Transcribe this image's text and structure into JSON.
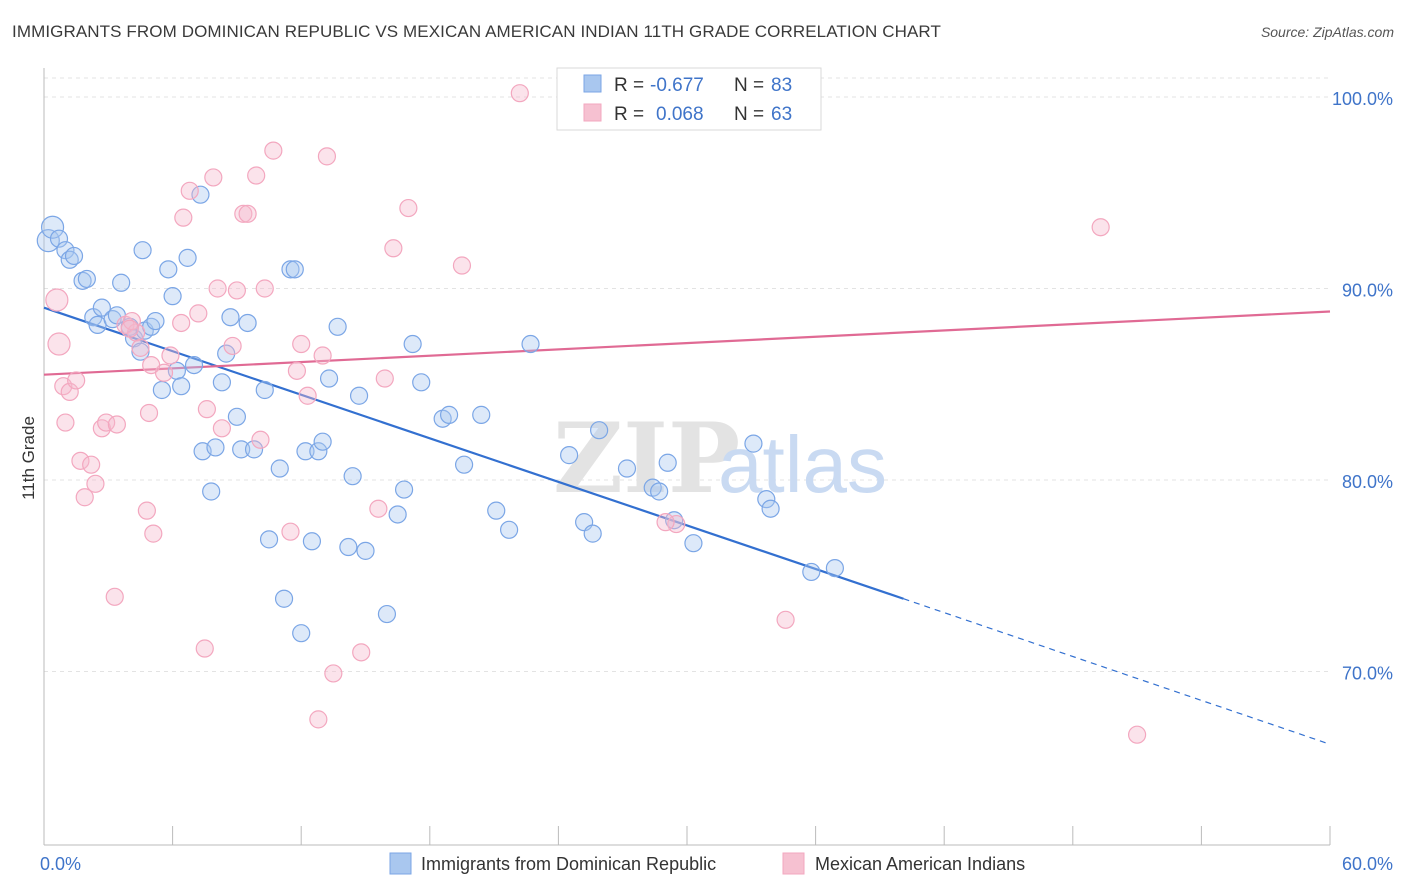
{
  "header": {
    "title": "IMMIGRANTS FROM DOMINICAN REPUBLIC VS MEXICAN AMERICAN INDIAN 11TH GRADE CORRELATION CHART",
    "source": "Source: ZipAtlas.com"
  },
  "watermark": {
    "zip": "ZIP",
    "atlas": "atlas"
  },
  "legend": {
    "rows": [
      {
        "r_label": "R =",
        "r_value": "-0.677",
        "n_label": "N =",
        "n_value": "83",
        "color": "#a9c7ef"
      },
      {
        "r_label": "R =",
        "r_value": "0.068",
        "n_label": "N =",
        "n_value": "63",
        "color": "#f6b9cc"
      }
    ]
  },
  "chart_data": {
    "type": "scatter",
    "title": "IMMIGRANTS FROM DOMINICAN REPUBLIC VS MEXICAN AMERICAN INDIAN 11TH GRADE CORRELATION CHART",
    "xlabel": "",
    "ylabel": "11th Grade",
    "xlim": [
      0,
      60
    ],
    "ylim": [
      60.5,
      103
    ],
    "x_tick_labels": [
      "0.0%",
      "60.0%"
    ],
    "y_ticks": [
      70,
      80,
      90,
      100
    ],
    "y_tick_labels": [
      "70.0%",
      "80.0%",
      "90.0%",
      "100.0%"
    ],
    "grid": true,
    "legend_position": "top-center",
    "series": [
      {
        "name": "Immigrants from Dominican Republic",
        "color": "#7ba6e6",
        "line_color": "#3370d0",
        "trend": {
          "x0": 0,
          "y0": 89.0,
          "x1": 40.1,
          "y1": 73.8,
          "x_ext": 60,
          "y_ext": 66.2
        },
        "points": [
          [
            0.2,
            92.5
          ],
          [
            0.4,
            93.2
          ],
          [
            0.7,
            92.6
          ],
          [
            1.0,
            92.0
          ],
          [
            1.2,
            91.5
          ],
          [
            1.4,
            91.7
          ],
          [
            1.8,
            90.4
          ],
          [
            2.0,
            90.5
          ],
          [
            2.3,
            88.5
          ],
          [
            2.5,
            88.1
          ],
          [
            2.7,
            89.0
          ],
          [
            3.2,
            88.4
          ],
          [
            3.4,
            88.6
          ],
          [
            3.6,
            90.3
          ],
          [
            4.0,
            88.0
          ],
          [
            4.2,
            87.4
          ],
          [
            4.5,
            86.7
          ],
          [
            4.7,
            87.8
          ],
          [
            4.6,
            92.0
          ],
          [
            5.0,
            88.0
          ],
          [
            5.2,
            88.3
          ],
          [
            5.5,
            84.7
          ],
          [
            5.8,
            91.0
          ],
          [
            6.0,
            89.6
          ],
          [
            6.2,
            85.7
          ],
          [
            6.4,
            84.9
          ],
          [
            6.7,
            91.6
          ],
          [
            7.0,
            86.0
          ],
          [
            7.3,
            94.9
          ],
          [
            7.4,
            81.5
          ],
          [
            7.8,
            79.4
          ],
          [
            8.0,
            81.7
          ],
          [
            8.3,
            85.1
          ],
          [
            8.5,
            86.6
          ],
          [
            8.7,
            88.5
          ],
          [
            9.0,
            83.3
          ],
          [
            9.2,
            81.6
          ],
          [
            9.5,
            88.2
          ],
          [
            9.8,
            81.6
          ],
          [
            10.3,
            84.7
          ],
          [
            10.5,
            76.9
          ],
          [
            11.0,
            80.6
          ],
          [
            11.2,
            73.8
          ],
          [
            11.5,
            91.0
          ],
          [
            11.7,
            91.0
          ],
          [
            12.0,
            72.0
          ],
          [
            12.2,
            81.5
          ],
          [
            12.5,
            76.8
          ],
          [
            12.8,
            81.5
          ],
          [
            13.0,
            82.0
          ],
          [
            13.3,
            85.3
          ],
          [
            13.7,
            88.0
          ],
          [
            14.2,
            76.5
          ],
          [
            14.4,
            80.2
          ],
          [
            14.7,
            84.4
          ],
          [
            15.0,
            76.3
          ],
          [
            16.0,
            73.0
          ],
          [
            16.5,
            78.2
          ],
          [
            16.8,
            79.5
          ],
          [
            17.2,
            87.1
          ],
          [
            17.6,
            85.1
          ],
          [
            18.6,
            83.2
          ],
          [
            18.9,
            83.4
          ],
          [
            19.6,
            80.8
          ],
          [
            20.4,
            83.4
          ],
          [
            21.1,
            78.4
          ],
          [
            21.7,
            77.4
          ],
          [
            22.7,
            87.1
          ],
          [
            24.5,
            81.3
          ],
          [
            25.2,
            77.8
          ],
          [
            25.6,
            77.2
          ],
          [
            25.9,
            82.6
          ],
          [
            27.2,
            80.6
          ],
          [
            28.4,
            79.6
          ],
          [
            28.7,
            79.4
          ],
          [
            29.1,
            80.9
          ],
          [
            29.4,
            77.9
          ],
          [
            30.3,
            76.7
          ],
          [
            33.1,
            81.9
          ],
          [
            33.7,
            79.0
          ],
          [
            33.9,
            78.5
          ],
          [
            35.8,
            75.2
          ],
          [
            36.9,
            75.4
          ]
        ]
      },
      {
        "name": "Mexican American Indians",
        "color": "#f3a7bf",
        "line_color": "#e06a94",
        "trend": {
          "x0": 0,
          "y0": 85.5,
          "x1": 60,
          "y1": 88.8
        },
        "points": [
          [
            0.6,
            89.4
          ],
          [
            0.7,
            87.1
          ],
          [
            0.9,
            84.9
          ],
          [
            1.2,
            84.6
          ],
          [
            1.5,
            85.2
          ],
          [
            1.7,
            81.0
          ],
          [
            1.9,
            79.1
          ],
          [
            2.2,
            80.8
          ],
          [
            2.4,
            79.8
          ],
          [
            2.7,
            82.7
          ],
          [
            2.9,
            83.0
          ],
          [
            3.4,
            82.9
          ],
          [
            3.3,
            73.9
          ],
          [
            3.8,
            88.1
          ],
          [
            4.3,
            87.7
          ],
          [
            4.1,
            88.3
          ],
          [
            4.5,
            86.9
          ],
          [
            4.9,
            83.5
          ],
          [
            4.8,
            78.4
          ],
          [
            5.1,
            77.2
          ],
          [
            5.6,
            85.6
          ],
          [
            5.9,
            86.5
          ],
          [
            6.4,
            88.2
          ],
          [
            6.5,
            93.7
          ],
          [
            6.8,
            95.1
          ],
          [
            7.2,
            88.7
          ],
          [
            7.6,
            83.7
          ],
          [
            7.5,
            71.2
          ],
          [
            7.9,
            95.8
          ],
          [
            8.1,
            90.0
          ],
          [
            8.3,
            82.7
          ],
          [
            8.8,
            87.0
          ],
          [
            9.0,
            89.9
          ],
          [
            9.3,
            93.9
          ],
          [
            9.5,
            93.9
          ],
          [
            9.9,
            95.9
          ],
          [
            10.1,
            82.1
          ],
          [
            10.3,
            90.0
          ],
          [
            10.7,
            97.2
          ],
          [
            11.5,
            77.3
          ],
          [
            11.8,
            85.7
          ],
          [
            12.0,
            87.1
          ],
          [
            12.3,
            84.4
          ],
          [
            12.8,
            67.5
          ],
          [
            13.2,
            96.9
          ],
          [
            13.5,
            69.9
          ],
          [
            14.8,
            71.0
          ],
          [
            15.6,
            78.5
          ],
          [
            15.9,
            85.3
          ],
          [
            16.3,
            92.1
          ],
          [
            17.0,
            94.2
          ],
          [
            19.5,
            91.2
          ],
          [
            22.2,
            100.2
          ],
          [
            28.9,
            100.2
          ],
          [
            29.5,
            77.7
          ],
          [
            34.6,
            72.7
          ],
          [
            49.3,
            93.2
          ],
          [
            51.0,
            66.7
          ],
          [
            29.0,
            77.8
          ],
          [
            4.0,
            87.9
          ],
          [
            1.0,
            83.0
          ],
          [
            5.0,
            86.0
          ],
          [
            13.0,
            86.5
          ]
        ]
      }
    ]
  },
  "bottom_legend": [
    {
      "label": "Immigrants from Dominican Republic",
      "color": "#a9c7ef",
      "border": "#7ba6e6"
    },
    {
      "label": "Mexican American Indians",
      "color": "#f6c1d1",
      "border": "#f3a7bf"
    }
  ]
}
